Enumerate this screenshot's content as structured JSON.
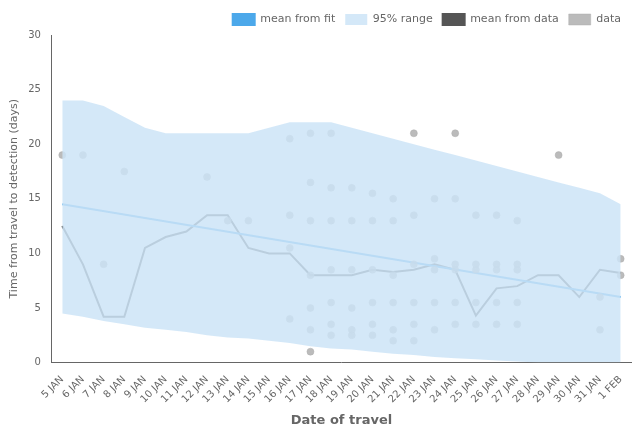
{
  "chart_data": {
    "type": "line",
    "xlabel": "Date of travel",
    "ylabel": "Time from travel to detection (days)",
    "xlim": [
      -0.5,
      27.5
    ],
    "xticks": [
      {
        "value": 0,
        "label": "5 JAN"
      },
      {
        "value": 1,
        "label": "6 JAN"
      },
      {
        "value": 2,
        "label": "7 JAN"
      },
      {
        "value": 3,
        "label": "8 JAN"
      },
      {
        "value": 4,
        "label": "9 JAN"
      },
      {
        "value": 5,
        "label": "10 JAN"
      },
      {
        "value": 6,
        "label": "11 JAN"
      },
      {
        "value": 7,
        "label": "12 JAN"
      },
      {
        "value": 8,
        "label": "13 JAN"
      },
      {
        "value": 9,
        "label": "14 JAN"
      },
      {
        "value": 10,
        "label": "15 JAN"
      },
      {
        "value": 11,
        "label": "16 JAN"
      },
      {
        "value": 12,
        "label": "17 JAN"
      },
      {
        "value": 13,
        "label": "18 JAN"
      },
      {
        "value": 14,
        "label": "19 JAN"
      },
      {
        "value": 15,
        "label": "20 JAN"
      },
      {
        "value": 16,
        "label": "21 JAN"
      },
      {
        "value": 17,
        "label": "22 JAN"
      },
      {
        "value": 18,
        "label": "23 JAN"
      },
      {
        "value": 19,
        "label": "24 JAN"
      },
      {
        "value": 20,
        "label": "25 JAN"
      },
      {
        "value": 21,
        "label": "26 JAN"
      },
      {
        "value": 22,
        "label": "27 JAN"
      },
      {
        "value": 23,
        "label": "28 JAN"
      },
      {
        "value": 24,
        "label": "29 JAN"
      },
      {
        "value": 25,
        "label": "30 JAN"
      },
      {
        "value": 26,
        "label": "31 JAN"
      },
      {
        "value": 27,
        "label": "1 FEB"
      }
    ],
    "ylim": [
      0,
      30
    ],
    "yticks": [
      0,
      5,
      10,
      15,
      20,
      25,
      30
    ],
    "grid": false,
    "legend": "upper right",
    "series": [
      {
        "name": "mean from fit",
        "type": "line",
        "color": "#4ca8ea",
        "x": [
          0,
          27
        ],
        "values": [
          14.5,
          6.0
        ]
      },
      {
        "name": "95% range",
        "type": "band",
        "color": "#cce4f7",
        "x": [
          0,
          1,
          2,
          3,
          4,
          5,
          6,
          7,
          8,
          9,
          10,
          11,
          12,
          13,
          14,
          15,
          16,
          17,
          18,
          19,
          20,
          21,
          22,
          23,
          24,
          25,
          26,
          27
        ],
        "upper": [
          24.0,
          24.0,
          23.5,
          22.5,
          21.5,
          21.0,
          21.0,
          21.0,
          21.0,
          21.0,
          21.5,
          22.0,
          22.0,
          22.0,
          21.5,
          21.0,
          20.5,
          20.0,
          19.5,
          19.0,
          18.5,
          18.0,
          17.5,
          17.0,
          16.5,
          16.0,
          15.5,
          14.5
        ],
        "lower": [
          4.5,
          4.2,
          3.8,
          3.5,
          3.2,
          3.0,
          2.8,
          2.5,
          2.3,
          2.2,
          2.0,
          1.8,
          1.5,
          1.3,
          1.2,
          1.0,
          0.8,
          0.7,
          0.5,
          0.4,
          0.3,
          0.2,
          0.1,
          0.0,
          0.0,
          0.0,
          0.0,
          0.0
        ]
      },
      {
        "name": "mean from data",
        "type": "line",
        "color": "#555555",
        "x": [
          0,
          1,
          2,
          3,
          4,
          5,
          6,
          7,
          8,
          9,
          10,
          11,
          12,
          13,
          14,
          15,
          16,
          17,
          18,
          19,
          20,
          21,
          22,
          23,
          24,
          25,
          26,
          27
        ],
        "values": [
          12.5,
          9.0,
          4.2,
          4.2,
          10.5,
          11.5,
          12.0,
          13.5,
          13.5,
          10.5,
          10.0,
          10.0,
          8.0,
          8.0,
          8.0,
          8.5,
          8.3,
          8.5,
          9.0,
          8.5,
          4.3,
          6.8,
          7.0,
          8.0,
          8.0,
          6.0,
          8.5,
          8.2
        ]
      },
      {
        "name": "data",
        "type": "scatter",
        "color": "#aaaaaa",
        "marker": "circle",
        "x": [
          0,
          1,
          2,
          3,
          7,
          8,
          9,
          11,
          11,
          11,
          11,
          12,
          12,
          12,
          12,
          12,
          12,
          12,
          13,
          13,
          13,
          13,
          13,
          13,
          13,
          14,
          14,
          14,
          14,
          14,
          14,
          15,
          15,
          15,
          15,
          15,
          15,
          16,
          16,
          16,
          16,
          16,
          16,
          17,
          17,
          17,
          17,
          17,
          17,
          18,
          18,
          18,
          18,
          18,
          19,
          19,
          19,
          19,
          19,
          19,
          20,
          20,
          20,
          20,
          20,
          21,
          21,
          21,
          21,
          21,
          22,
          22,
          22,
          22,
          22,
          24,
          26,
          26,
          27,
          27
        ],
        "values": [
          19.0,
          19.0,
          9.0,
          17.5,
          17.0,
          13.0,
          13.0,
          20.5,
          13.5,
          10.5,
          4.0,
          21.0,
          16.5,
          13.0,
          8.0,
          5.0,
          3.0,
          1.0,
          21.0,
          16.0,
          13.0,
          8.5,
          5.5,
          3.5,
          2.5,
          16.0,
          13.0,
          8.5,
          5.0,
          3.0,
          2.5,
          15.5,
          13.0,
          8.5,
          5.5,
          3.5,
          2.5,
          15.0,
          13.0,
          8.0,
          5.5,
          3.0,
          2.0,
          21.0,
          13.5,
          9.0,
          5.5,
          3.5,
          2.0,
          15.0,
          9.5,
          8.5,
          5.5,
          3.0,
          21.0,
          15.0,
          9.0,
          8.5,
          5.5,
          3.5,
          13.5,
          9.0,
          8.5,
          5.5,
          3.5,
          13.5,
          9.0,
          8.5,
          5.5,
          3.5,
          13.0,
          9.0,
          8.5,
          5.5,
          3.5,
          19.0,
          6.0,
          3.0,
          9.5,
          8.0
        ]
      }
    ]
  }
}
